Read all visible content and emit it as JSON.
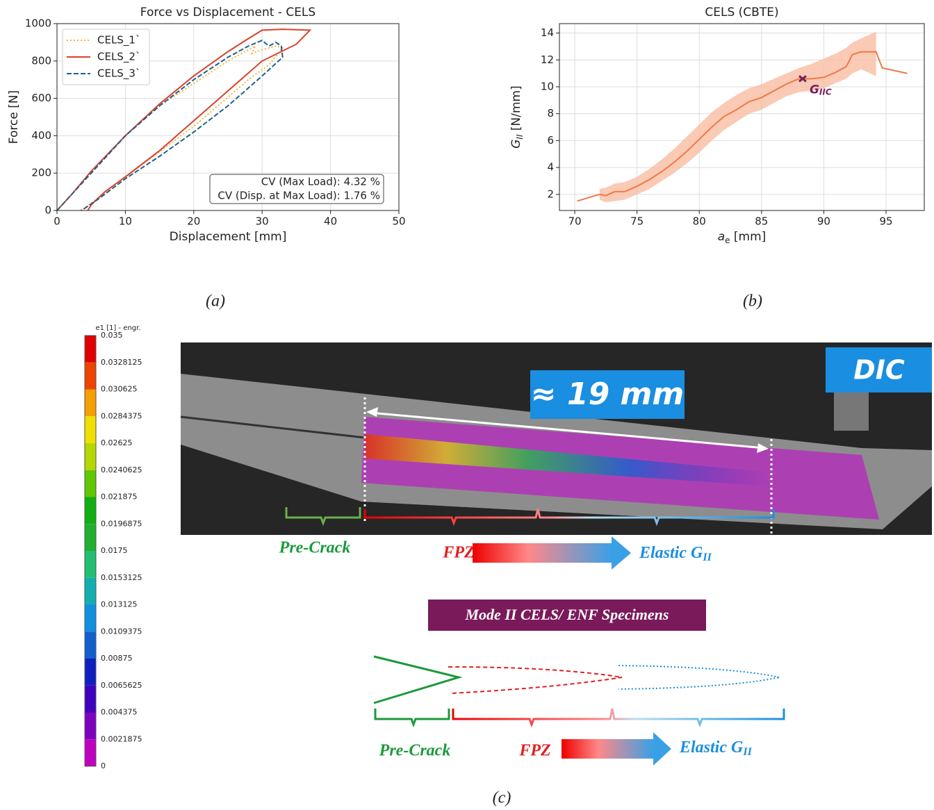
{
  "chart_data": [
    {
      "type": "line",
      "title": "Force vs Displacement - CELS",
      "xlabel": "Displacement [mm]",
      "ylabel": "Force [N]",
      "xlim": [
        0,
        50
      ],
      "ylim": [
        0,
        1000
      ],
      "xticks": [
        0,
        10,
        20,
        30,
        40,
        50
      ],
      "yticks": [
        0,
        200,
        400,
        600,
        800,
        1000
      ],
      "grid": true,
      "legend": "upper left",
      "series": [
        {
          "name": "CELS_1`",
          "color": "#f5b335",
          "dash": "dotted",
          "x": [
            0,
            5,
            10,
            15,
            20,
            25,
            28,
            29,
            28.5,
            30,
            32,
            33,
            31,
            28,
            20,
            10,
            5,
            3.5
          ],
          "values": [
            0,
            200,
            400,
            560,
            680,
            800,
            860,
            880,
            840,
            860,
            880,
            870,
            780,
            700,
            450,
            180,
            40,
            0
          ]
        },
        {
          "name": "CELS_2`",
          "color": "#d9402a",
          "dash": "solid",
          "x": [
            0,
            2,
            5,
            10,
            15,
            20,
            25,
            28,
            30,
            33,
            37,
            35,
            30,
            25,
            20,
            15,
            10,
            7,
            5,
            4.5
          ],
          "values": [
            0,
            80,
            210,
            400,
            570,
            720,
            850,
            920,
            965,
            970,
            965,
            890,
            800,
            640,
            480,
            320,
            180,
            100,
            30,
            0
          ]
        },
        {
          "name": "CELS_3`",
          "color": "#1f5f8b",
          "dash": "dashed",
          "x": [
            0,
            2,
            5,
            10,
            15,
            20,
            25,
            28,
            30,
            31,
            32,
            32.8,
            33,
            30,
            25,
            20,
            15,
            10,
            6,
            4,
            3.5
          ],
          "values": [
            0,
            80,
            200,
            400,
            560,
            700,
            820,
            880,
            910,
            880,
            900,
            880,
            820,
            720,
            560,
            420,
            290,
            170,
            60,
            10,
            0
          ]
        }
      ],
      "annotations": [
        "CV (Max Load): 4.32 %",
        "CV (Disp. at Max Load): 1.76 %"
      ]
    },
    {
      "type": "line",
      "title": "CELS (CBTE)",
      "xlabel": "a",
      "xlabel_sub": "e",
      "xlabel_unit": " [mm]",
      "ylabel": "G",
      "ylabel_sub": "II",
      "ylabel_unit": " [N/mm]",
      "xlim": [
        68.77,
        98.07
      ],
      "ylim": [
        0.8,
        14.7
      ],
      "xticks": [
        70,
        75,
        80,
        85,
        90,
        95
      ],
      "yticks": [
        2,
        4,
        6,
        8,
        10,
        12,
        14
      ],
      "grid": true,
      "series": [
        {
          "color": "#ee7a45",
          "band_color": "#f9bda3",
          "dash": "solid",
          "x": [
            70.2,
            72,
            72.5,
            73.2,
            74,
            75,
            76,
            77,
            78,
            79,
            80,
            81,
            82,
            83,
            84,
            85,
            86,
            87,
            88,
            89,
            90,
            91,
            91.8,
            92.3,
            93,
            94.2,
            94.7,
            96.7
          ],
          "values": [
            1.5,
            2.0,
            1.9,
            2.2,
            2.2,
            2.6,
            3.1,
            3.7,
            4.4,
            5.2,
            6.1,
            7.0,
            7.8,
            8.3,
            8.9,
            9.2,
            9.7,
            10.2,
            10.6,
            10.6,
            10.7,
            11.1,
            11.5,
            12.4,
            12.6,
            12.6,
            11.4,
            11.0
          ],
          "lower": [
            null,
            1.6,
            1.4,
            1.5,
            1.6,
            2.0,
            2.4,
            3.0,
            3.6,
            4.3,
            5.1,
            6.0,
            6.8,
            7.4,
            8.0,
            8.3,
            8.8,
            9.3,
            9.6,
            9.7,
            9.9,
            10.3,
            10.6,
            11.0,
            11.3,
            10.8,
            null,
            null
          ],
          "upper": [
            null,
            2.4,
            2.5,
            2.8,
            2.9,
            3.3,
            3.9,
            4.6,
            5.4,
            6.3,
            7.2,
            8.1,
            8.8,
            9.4,
            9.9,
            10.2,
            10.6,
            11.0,
            11.4,
            11.7,
            12.1,
            12.5,
            12.9,
            13.3,
            13.6,
            14.1,
            null,
            null
          ]
        }
      ],
      "marker": {
        "x": 88.3,
        "y": 10.6,
        "color": "#7a1f5c",
        "text": "G",
        "sub": "IIC"
      }
    }
  ],
  "captions": [
    "(a)",
    "(b)",
    "(c)"
  ],
  "colorbar": {
    "title": "e1 [1] - engr.",
    "labels": [
      0.035,
      0.0328125,
      0.030625,
      0.0284375,
      0.02625,
      0.0240625,
      0.021875,
      0.0196875,
      0.0175,
      0.0153125,
      0.013125,
      0.0109375,
      0.00875,
      0.0065625,
      0.004375,
      0.0021875,
      0
    ],
    "colors": [
      "#e00000",
      "#ee4400",
      "#f5a000",
      "#f0e000",
      "#b5d800",
      "#60c800",
      "#10b010",
      "#20b030",
      "#20c070",
      "#10b0b0",
      "#1090e0",
      "#1060d0",
      "#1020c0",
      "#4000c0",
      "#8000c0",
      "#c000c0"
    ]
  },
  "diagram": {
    "length": "≈ 19 mm",
    "dic": "DIC",
    "mode": "Mode II CELS/ ENF Specimens",
    "dic_labels": {
      "pre_crack": "Pre-Crack",
      "fpz": "FPZ",
      "elastic": "Elastic G",
      "elastic_sub": "II"
    },
    "scheme_labels": {
      "pre_crack": "Pre-Crack",
      "fpz": "FPZ",
      "elastic": "Elastic G",
      "elastic_sub": "II"
    }
  }
}
